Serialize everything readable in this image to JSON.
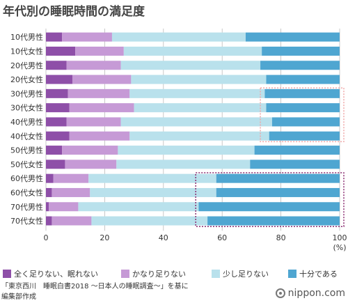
{
  "title": "年代別の睡眠時間の満足度",
  "chart_data": {
    "type": "bar",
    "orientation": "horizontal",
    "stacked": true,
    "percent_unit": "(%)",
    "xlim": [
      0,
      100
    ],
    "x_ticks": [
      0,
      20,
      40,
      60,
      80,
      100
    ],
    "categories": [
      "10代男性",
      "10代女性",
      "20代男性",
      "20代女性",
      "30代男性",
      "30代女性",
      "40代男性",
      "40代女性",
      "50代男性",
      "50代女性",
      "60代男性",
      "60代女性",
      "70代男性",
      "70代女性"
    ],
    "series": [
      {
        "name": "全く足りない、眠れない",
        "color": "#8e4fa8",
        "values": [
          5.5,
          10,
          7,
          9,
          7.5,
          8,
          7,
          8,
          5.5,
          6.5,
          2.5,
          2,
          1,
          2
        ]
      },
      {
        "name": "かなり足りない",
        "color": "#c69ad6",
        "values": [
          17,
          16.5,
          18.5,
          20,
          21,
          22,
          18.5,
          20.5,
          19,
          17.5,
          12,
          13,
          10,
          13.5
        ]
      },
      {
        "name": "少し足りない",
        "color": "#b9e1ec",
        "values": [
          45.5,
          47,
          47.5,
          46,
          46,
          45,
          51.5,
          47.5,
          46.5,
          45.5,
          43.5,
          43,
          41,
          39.5
        ]
      },
      {
        "name": "十分である",
        "color": "#4fa6d1",
        "values": [
          32,
          26.5,
          27,
          25,
          25.5,
          25,
          23,
          24,
          29,
          30.5,
          42,
          42,
          48,
          45
        ]
      }
    ]
  },
  "footer": {
    "source_line1": "「東京西川　睡眠白書2018 ～日本人の睡眠調査～」を基に",
    "source_line2": "編集部作成",
    "brand": "nippon.com"
  }
}
